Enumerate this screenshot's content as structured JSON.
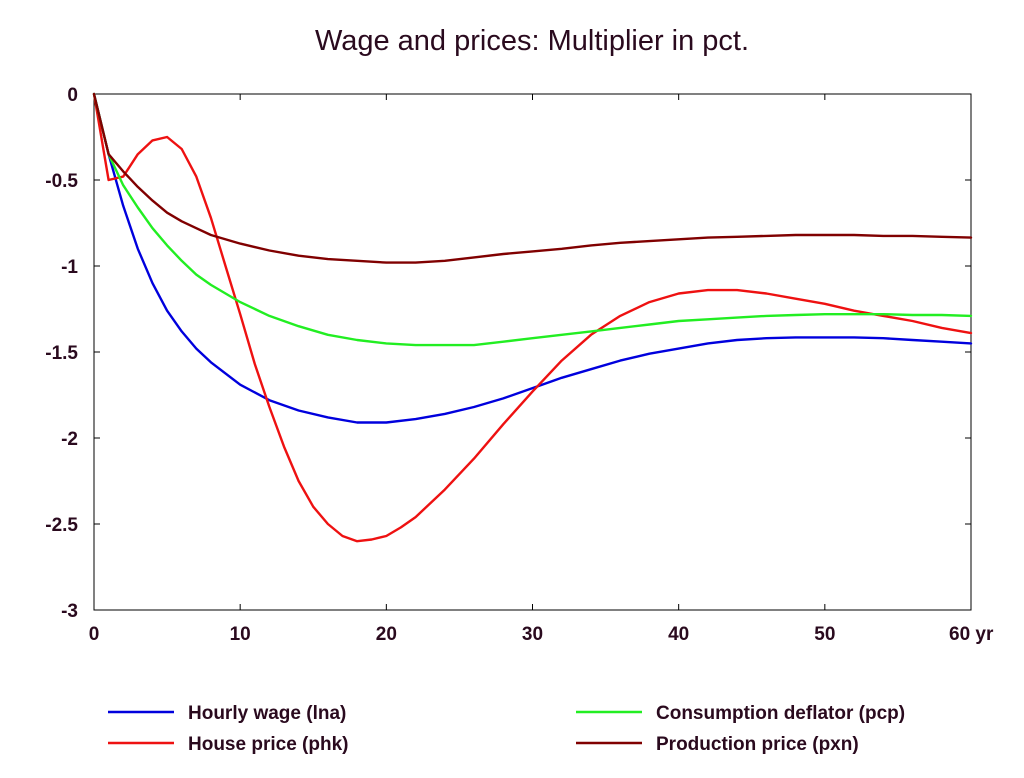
{
  "chart_data": {
    "type": "line",
    "title": "Wage and prices: Multiplier in pct.",
    "xlabel": "",
    "ylabel": "",
    "x_unit": "yr",
    "xlim": [
      0,
      60
    ],
    "ylim": [
      -3,
      0
    ],
    "x_ticks": [
      0,
      10,
      20,
      30,
      40,
      50,
      60
    ],
    "x_tick_labels": [
      "0",
      "10",
      "20",
      "30",
      "40",
      "50",
      "60 yr"
    ],
    "y_ticks": [
      0,
      -0.5,
      -1,
      -1.5,
      -2,
      -2.5,
      -3
    ],
    "y_tick_labels": [
      "0",
      "-0.5",
      "-1",
      "-1.5",
      "-2",
      "-2.5",
      "-3"
    ],
    "grid": false,
    "legend_position": "bottom",
    "series": [
      {
        "name": "Hourly wage (lna)",
        "color": "#0000dd",
        "x": [
          0,
          1,
          2,
          3,
          4,
          5,
          6,
          7,
          8,
          10,
          12,
          14,
          16,
          18,
          19,
          20,
          22,
          24,
          26,
          28,
          30,
          32,
          34,
          36,
          38,
          40,
          42,
          44,
          46,
          48,
          50,
          52,
          54,
          56,
          58,
          60
        ],
        "y": [
          0,
          -0.35,
          -0.65,
          -0.9,
          -1.1,
          -1.26,
          -1.38,
          -1.48,
          -1.56,
          -1.69,
          -1.78,
          -1.84,
          -1.88,
          -1.91,
          -1.91,
          -1.91,
          -1.89,
          -1.86,
          -1.82,
          -1.77,
          -1.71,
          -1.65,
          -1.6,
          -1.55,
          -1.51,
          -1.48,
          -1.45,
          -1.43,
          -1.42,
          -1.415,
          -1.415,
          -1.415,
          -1.42,
          -1.43,
          -1.44,
          -1.45
        ]
      },
      {
        "name": "House price (phk)",
        "color": "#ee1111",
        "x": [
          0,
          1,
          2,
          3,
          4,
          5,
          6,
          7,
          8,
          9,
          10,
          11,
          12,
          13,
          14,
          15,
          16,
          17,
          18,
          19,
          20,
          21,
          22,
          24,
          26,
          28,
          30,
          32,
          34,
          36,
          38,
          40,
          42,
          44,
          46,
          48,
          50,
          52,
          54,
          56,
          58,
          60
        ],
        "y": [
          0,
          -0.5,
          -0.48,
          -0.35,
          -0.27,
          -0.25,
          -0.32,
          -0.48,
          -0.72,
          -1.0,
          -1.28,
          -1.57,
          -1.82,
          -2.05,
          -2.25,
          -2.4,
          -2.5,
          -2.57,
          -2.6,
          -2.59,
          -2.57,
          -2.52,
          -2.46,
          -2.3,
          -2.12,
          -1.92,
          -1.73,
          -1.55,
          -1.4,
          -1.29,
          -1.21,
          -1.16,
          -1.14,
          -1.14,
          -1.16,
          -1.19,
          -1.22,
          -1.26,
          -1.29,
          -1.32,
          -1.36,
          -1.39
        ]
      },
      {
        "name": "Consumption deflator (pcp)",
        "color": "#22ee22",
        "x": [
          0,
          1,
          2,
          3,
          4,
          5,
          6,
          7,
          8,
          10,
          12,
          14,
          16,
          18,
          20,
          22,
          24,
          26,
          28,
          30,
          32,
          34,
          36,
          38,
          40,
          42,
          44,
          46,
          48,
          50,
          52,
          54,
          56,
          58,
          60
        ],
        "y": [
          0,
          -0.35,
          -0.53,
          -0.66,
          -0.78,
          -0.88,
          -0.97,
          -1.05,
          -1.11,
          -1.21,
          -1.29,
          -1.35,
          -1.4,
          -1.43,
          -1.45,
          -1.46,
          -1.46,
          -1.46,
          -1.44,
          -1.42,
          -1.4,
          -1.38,
          -1.36,
          -1.34,
          -1.32,
          -1.31,
          -1.3,
          -1.29,
          -1.285,
          -1.28,
          -1.28,
          -1.28,
          -1.285,
          -1.285,
          -1.29
        ]
      },
      {
        "name": "Production price (pxn)",
        "color": "#800000",
        "x": [
          0,
          1,
          2,
          3,
          4,
          5,
          6,
          7,
          8,
          10,
          12,
          14,
          16,
          18,
          20,
          22,
          24,
          26,
          28,
          30,
          32,
          34,
          36,
          38,
          40,
          42,
          44,
          46,
          48,
          50,
          52,
          54,
          56,
          58,
          60
        ],
        "y": [
          0,
          -0.35,
          -0.45,
          -0.54,
          -0.62,
          -0.69,
          -0.74,
          -0.78,
          -0.82,
          -0.87,
          -0.91,
          -0.94,
          -0.96,
          -0.97,
          -0.98,
          -0.98,
          -0.97,
          -0.95,
          -0.93,
          -0.915,
          -0.9,
          -0.88,
          -0.865,
          -0.855,
          -0.845,
          -0.835,
          -0.83,
          -0.825,
          -0.82,
          -0.82,
          -0.82,
          -0.825,
          -0.825,
          -0.83,
          -0.835
        ]
      }
    ]
  }
}
